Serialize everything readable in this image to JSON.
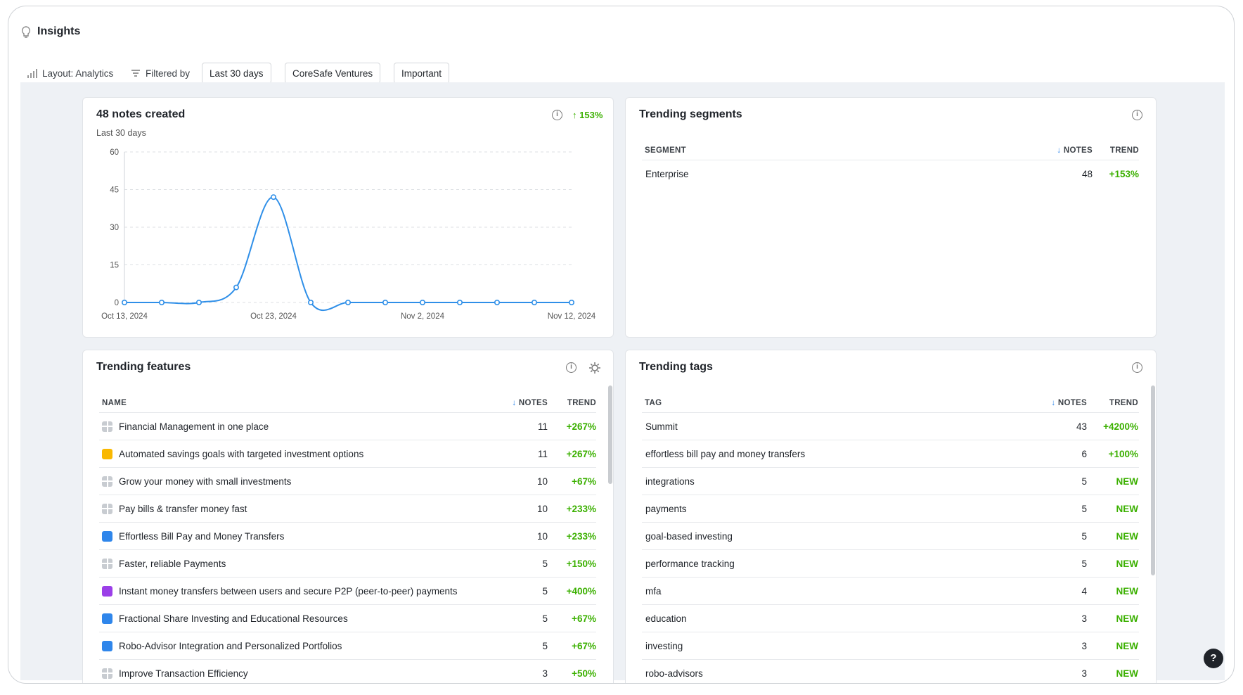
{
  "header": {
    "title": "Insights"
  },
  "toolbar": {
    "layout": "Layout: Analytics",
    "filter_label": "Filtered by",
    "filters": [
      "Last 30 days",
      "CoreSafe Ventures",
      "Important"
    ]
  },
  "notes_panel": {
    "title": "48 notes created",
    "subtitle": "Last 30 days",
    "change": "153%",
    "chart_data": {
      "type": "line",
      "categories": [
        "Oct 13, 2024",
        null,
        null,
        null,
        "Oct 23, 2024",
        null,
        null,
        null,
        "Nov 2, 2024",
        null,
        null,
        null,
        "Nov 12, 2024"
      ],
      "series": [
        {
          "name": "Notes",
          "color": "#2f8fe8",
          "values": [
            0,
            0,
            0,
            6,
            42,
            0,
            0,
            0,
            0,
            0,
            0,
            0,
            0
          ]
        }
      ],
      "ylim": [
        0,
        60
      ],
      "yticks": [
        0,
        15,
        30,
        45,
        60
      ],
      "grid": true
    }
  },
  "segments_panel": {
    "title": "Trending segments",
    "columns": [
      "SEGMENT",
      "NOTES",
      "TREND"
    ],
    "rows": [
      {
        "name": "Enterprise",
        "notes": 48,
        "trend": "+153%"
      }
    ]
  },
  "features_panel": {
    "title": "Trending features",
    "columns": [
      "NAME",
      "NOTES",
      "TREND"
    ],
    "rows": [
      {
        "icon": "grid",
        "name": "Financial Management in one place",
        "notes": 11,
        "trend": "+267%"
      },
      {
        "icon": "#f9b800",
        "name": "Automated savings goals with targeted investment options",
        "notes": 11,
        "trend": "+267%"
      },
      {
        "icon": "grid",
        "name": "Grow your money with small investments",
        "notes": 10,
        "trend": "+67%"
      },
      {
        "icon": "grid",
        "name": "Pay bills & transfer money fast",
        "notes": 10,
        "trend": "+233%"
      },
      {
        "icon": "#2f86eb",
        "name": "Effortless Bill Pay and Money Transfers",
        "notes": 10,
        "trend": "+233%"
      },
      {
        "icon": "grid",
        "name": "Faster, reliable Payments",
        "notes": 5,
        "trend": "+150%"
      },
      {
        "icon": "#9b3fe8",
        "name": "Instant money transfers between users and secure P2P (peer-to-peer) payments",
        "notes": 5,
        "trend": "+400%"
      },
      {
        "icon": "#2f86eb",
        "name": "Fractional Share Investing and Educational Resources",
        "notes": 5,
        "trend": "+67%"
      },
      {
        "icon": "#2f86eb",
        "name": "Robo-Advisor Integration and Personalized Portfolios",
        "notes": 5,
        "trend": "+67%"
      },
      {
        "icon": "grid",
        "name": "Improve Transaction Efficiency",
        "notes": 3,
        "trend": "+50%"
      }
    ]
  },
  "tags_panel": {
    "title": "Trending tags",
    "columns": [
      "TAG",
      "NOTES",
      "TREND"
    ],
    "rows": [
      {
        "name": "Summit",
        "notes": 43,
        "trend": "+4200%"
      },
      {
        "name": "effortless bill pay and money transfers",
        "notes": 6,
        "trend": "+100%"
      },
      {
        "name": "integrations",
        "notes": 5,
        "trend": "NEW"
      },
      {
        "name": "payments",
        "notes": 5,
        "trend": "NEW"
      },
      {
        "name": "goal-based investing",
        "notes": 5,
        "trend": "NEW"
      },
      {
        "name": "performance tracking",
        "notes": 5,
        "trend": "NEW"
      },
      {
        "name": "mfa",
        "notes": 4,
        "trend": "NEW"
      },
      {
        "name": "education",
        "notes": 3,
        "trend": "NEW"
      },
      {
        "name": "investing",
        "notes": 3,
        "trend": "NEW"
      },
      {
        "name": "robo-advisors",
        "notes": 3,
        "trend": "NEW"
      }
    ]
  }
}
